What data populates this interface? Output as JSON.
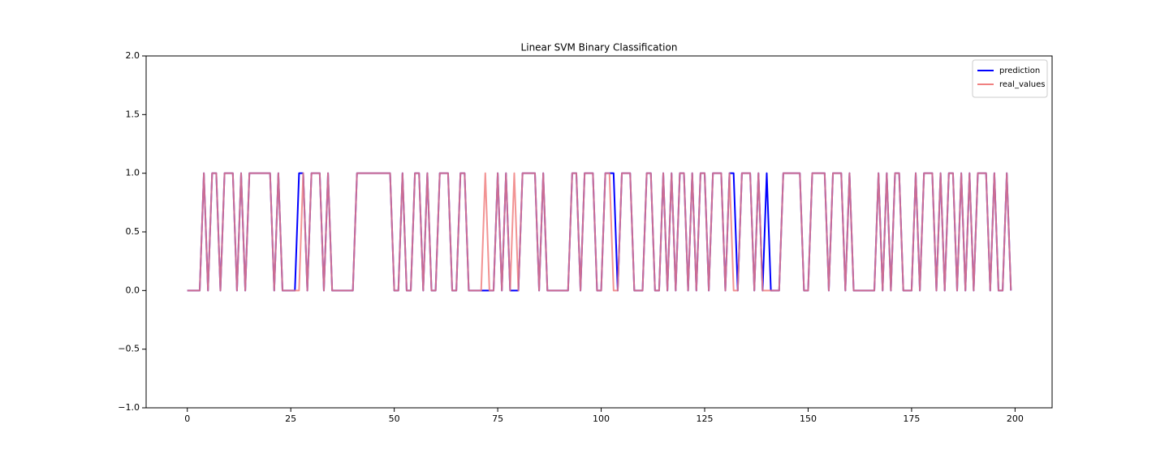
{
  "chart_data": {
    "type": "line",
    "title": "Linear SVM Binary Classification",
    "x": [
      0,
      1,
      2,
      3,
      4,
      5,
      6,
      7,
      8,
      9,
      10,
      11,
      12,
      13,
      14,
      15,
      16,
      17,
      18,
      19,
      20,
      21,
      22,
      23,
      24,
      25,
      26,
      27,
      28,
      29,
      30,
      31,
      32,
      33,
      34,
      35,
      36,
      37,
      38,
      39,
      40,
      41,
      42,
      43,
      44,
      45,
      46,
      47,
      48,
      49,
      50,
      51,
      52,
      53,
      54,
      55,
      56,
      57,
      58,
      59,
      60,
      61,
      62,
      63,
      64,
      65,
      66,
      67,
      68,
      69,
      70,
      71,
      72,
      73,
      74,
      75,
      76,
      77,
      78,
      79,
      80,
      81,
      82,
      83,
      84,
      85,
      86,
      87,
      88,
      89,
      90,
      91,
      92,
      93,
      94,
      95,
      96,
      97,
      98,
      99,
      100,
      101,
      102,
      103,
      104,
      105,
      106,
      107,
      108,
      109,
      110,
      111,
      112,
      113,
      114,
      115,
      116,
      117,
      118,
      119,
      120,
      121,
      122,
      123,
      124,
      125,
      126,
      127,
      128,
      129,
      130,
      131,
      132,
      133,
      134,
      135,
      136,
      137,
      138,
      139,
      140,
      141,
      142,
      143,
      144,
      145,
      146,
      147,
      148,
      149,
      150,
      151,
      152,
      153,
      154,
      155,
      156,
      157,
      158,
      159,
      160,
      161,
      162,
      163,
      164,
      165,
      166,
      167,
      168,
      169,
      170,
      171,
      172,
      173,
      174,
      175,
      176,
      177,
      178,
      179,
      180,
      181,
      182,
      183,
      184,
      185,
      186,
      187,
      188,
      189,
      190,
      191,
      192,
      193,
      194,
      195,
      196,
      197,
      198,
      199
    ],
    "series": [
      {
        "name": "prediction",
        "color": "#0000ff",
        "values": [
          0,
          0,
          0,
          0,
          1,
          0,
          1,
          1,
          0,
          1,
          1,
          1,
          0,
          1,
          0,
          1,
          1,
          1,
          1,
          1,
          1,
          0,
          1,
          0,
          0,
          0,
          0,
          1,
          1,
          0,
          1,
          1,
          1,
          0,
          1,
          0,
          0,
          0,
          0,
          0,
          0,
          1,
          1,
          1,
          1,
          1,
          1,
          1,
          1,
          1,
          0,
          0,
          1,
          0,
          0,
          1,
          1,
          0,
          1,
          0,
          0,
          1,
          1,
          1,
          0,
          0,
          1,
          1,
          0,
          0,
          0,
          0,
          0,
          0,
          0,
          1,
          0,
          1,
          0,
          0,
          0,
          1,
          1,
          1,
          1,
          0,
          1,
          0,
          0,
          0,
          0,
          0,
          0,
          1,
          1,
          0,
          1,
          1,
          1,
          0,
          0,
          1,
          1,
          1,
          0,
          1,
          1,
          1,
          0,
          0,
          0,
          1,
          1,
          0,
          0,
          1,
          0,
          1,
          0,
          1,
          1,
          0,
          1,
          0,
          1,
          1,
          0,
          1,
          1,
          1,
          0,
          1,
          1,
          0,
          1,
          1,
          1,
          0,
          1,
          0,
          1,
          0,
          0,
          0,
          1,
          1,
          1,
          1,
          1,
          0,
          0,
          1,
          1,
          1,
          1,
          0,
          1,
          1,
          1,
          0,
          1,
          0,
          0,
          0,
          0,
          0,
          0,
          1,
          0,
          1,
          0,
          1,
          1,
          0,
          0,
          0,
          1,
          0,
          1,
          1,
          1,
          0,
          1,
          0,
          1,
          1,
          0,
          1,
          0,
          1,
          0,
          1,
          1,
          1,
          0,
          1,
          0,
          0,
          1,
          0
        ]
      },
      {
        "name": "real_values",
        "color": "#f08080",
        "values": [
          0,
          0,
          0,
          0,
          1,
          0,
          1,
          1,
          0,
          1,
          1,
          1,
          0,
          1,
          0,
          1,
          1,
          1,
          1,
          1,
          1,
          0,
          1,
          0,
          0,
          0,
          0,
          0,
          1,
          0,
          1,
          1,
          1,
          0,
          1,
          0,
          0,
          0,
          0,
          0,
          0,
          1,
          1,
          1,
          1,
          1,
          1,
          1,
          1,
          1,
          0,
          0,
          1,
          0,
          0,
          1,
          1,
          0,
          1,
          0,
          0,
          1,
          1,
          1,
          0,
          0,
          1,
          1,
          0,
          0,
          0,
          0,
          1,
          0,
          0,
          1,
          0,
          1,
          0,
          1,
          0,
          1,
          1,
          1,
          1,
          0,
          1,
          0,
          0,
          0,
          0,
          0,
          0,
          1,
          1,
          0,
          1,
          1,
          1,
          0,
          0,
          1,
          1,
          0,
          0,
          1,
          1,
          1,
          0,
          0,
          0,
          1,
          1,
          0,
          0,
          1,
          0,
          1,
          0,
          1,
          1,
          0,
          1,
          0,
          1,
          1,
          0,
          1,
          1,
          1,
          0,
          1,
          0,
          0,
          1,
          1,
          1,
          0,
          1,
          0,
          0,
          0,
          0,
          0,
          1,
          1,
          1,
          1,
          1,
          0,
          0,
          1,
          1,
          1,
          1,
          0,
          1,
          1,
          1,
          0,
          1,
          0,
          0,
          0,
          0,
          0,
          0,
          1,
          0,
          1,
          0,
          1,
          1,
          0,
          0,
          0,
          1,
          0,
          1,
          1,
          1,
          0,
          1,
          0,
          1,
          1,
          0,
          1,
          0,
          1,
          0,
          1,
          1,
          1,
          0,
          1,
          0,
          0,
          1,
          0
        ]
      }
    ],
    "xlim": [
      -9.95,
      208.95
    ],
    "xticks": [
      0,
      25,
      50,
      75,
      100,
      125,
      150,
      175,
      200
    ],
    "ylim": [
      -1,
      2
    ],
    "yticks": [
      {
        "value": -1,
        "label": "−1.0"
      },
      {
        "value": -0.5,
        "label": "−0.5"
      },
      {
        "value": 0,
        "label": "0.0"
      },
      {
        "value": 0.5,
        "label": "0.5"
      },
      {
        "value": 1,
        "label": "1.0"
      },
      {
        "value": 1.5,
        "label": "1.5"
      },
      {
        "value": 2,
        "label": "2.0"
      }
    ],
    "legend": "upper right",
    "grid": false
  }
}
